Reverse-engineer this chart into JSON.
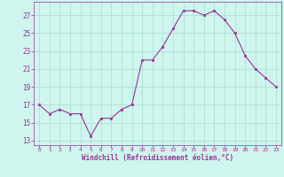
{
  "x": [
    0,
    1,
    2,
    3,
    4,
    5,
    6,
    7,
    8,
    9,
    10,
    11,
    12,
    13,
    14,
    15,
    16,
    17,
    18,
    19,
    20,
    21,
    22,
    23
  ],
  "y": [
    17,
    16,
    16.5,
    16,
    16,
    13.5,
    15.5,
    15.5,
    16.5,
    17,
    22,
    22,
    23.5,
    25.5,
    27.5,
    27.5,
    27,
    27.5,
    26.5,
    25,
    22.5,
    21,
    20,
    19
  ],
  "line_color": "#993399",
  "marker_color": "#993399",
  "bg_color": "#cef5ee",
  "grid_color": "#aaddcc",
  "xlabel": "Windchill (Refroidissement éolien,°C)",
  "xlabel_color": "#993399",
  "tick_color": "#993399",
  "ylim": [
    12.5,
    28.5
  ],
  "yticks": [
    13,
    15,
    17,
    19,
    21,
    23,
    25,
    27
  ],
  "xticks": [
    0,
    1,
    2,
    3,
    4,
    5,
    6,
    7,
    8,
    9,
    10,
    11,
    12,
    13,
    14,
    15,
    16,
    17,
    18,
    19,
    20,
    21,
    22,
    23
  ],
  "xlim": [
    -0.5,
    23.5
  ]
}
